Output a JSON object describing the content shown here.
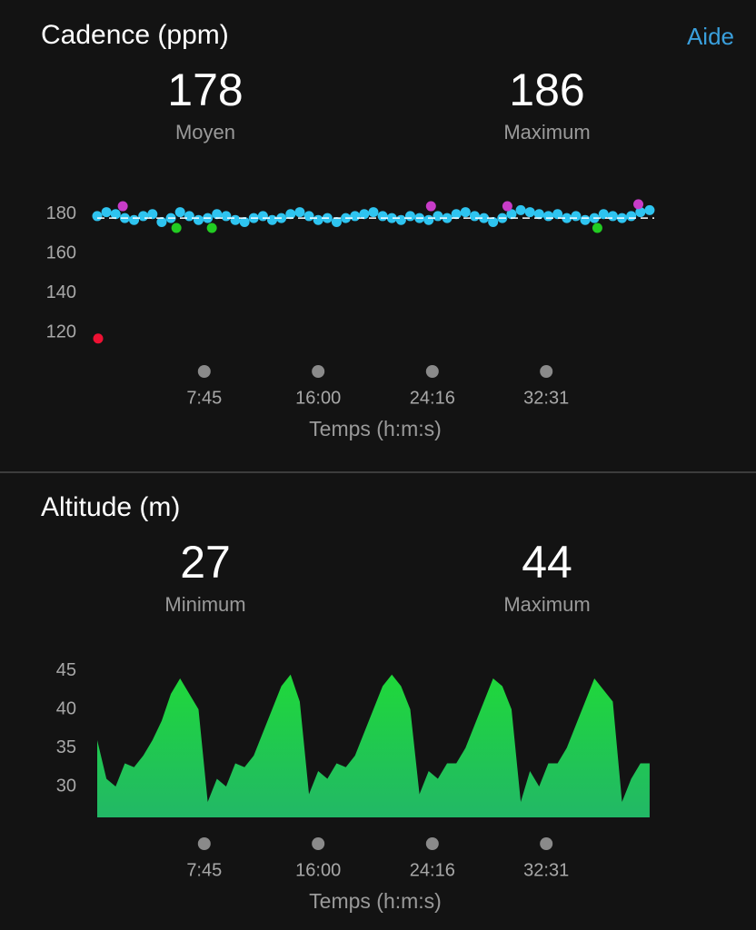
{
  "help": "Aide",
  "chart_data": [
    {
      "type": "scatter",
      "title": "Cadence (ppm)",
      "stats": [
        {
          "value": 178,
          "label": "Moyen"
        },
        {
          "value": 186,
          "label": "Maximum"
        }
      ],
      "xlabel": "Temps (h:m:s)",
      "xlim": [
        0,
        2420
      ],
      "xticks": [
        {
          "value": 465,
          "label": "7:45"
        },
        {
          "value": 960,
          "label": "16:00"
        },
        {
          "value": 1456,
          "label": "24:16"
        },
        {
          "value": 1951,
          "label": "32:31"
        }
      ],
      "ylim": [
        110,
        190
      ],
      "yticks": [
        120,
        140,
        160,
        180
      ],
      "series": [
        {
          "color": "#2ec4f0",
          "x": [
            0,
            40,
            80,
            120,
            160,
            200,
            240,
            280,
            320,
            360,
            400,
            440,
            480,
            520,
            560,
            600,
            640,
            680,
            720,
            760,
            800,
            840,
            880,
            920,
            960,
            1000,
            1040,
            1080,
            1120,
            1160,
            1200,
            1240,
            1280,
            1320,
            1360,
            1400,
            1440,
            1480,
            1520,
            1560,
            1600,
            1640,
            1680,
            1720,
            1760,
            1800,
            1840,
            1880,
            1920,
            1960,
            2000,
            2040,
            2080,
            2120,
            2160,
            2200,
            2240,
            2280,
            2320,
            2360,
            2400
          ],
          "values": [
            179,
            181,
            180,
            178,
            177,
            179,
            180,
            176,
            178,
            181,
            179,
            177,
            178,
            180,
            179,
            177,
            176,
            178,
            179,
            177,
            178,
            180,
            181,
            179,
            177,
            178,
            176,
            178,
            179,
            180,
            181,
            179,
            178,
            177,
            179,
            178,
            177,
            179,
            178,
            180,
            181,
            179,
            178,
            176,
            178,
            180,
            182,
            181,
            180,
            179,
            180,
            178,
            179,
            177,
            178,
            180,
            179,
            178,
            179,
            181,
            182
          ]
        },
        {
          "color": "#c83cc8",
          "x": [
            111,
            1450,
            1782,
            2351
          ],
          "values": [
            184,
            184,
            184,
            185
          ]
        },
        {
          "color": "#22cc22",
          "x": [
            344,
            498,
            2173
          ],
          "values": [
            173,
            173,
            173
          ]
        },
        {
          "color": "#ee1133",
          "x": [
            4
          ],
          "values": [
            117
          ]
        }
      ]
    },
    {
      "type": "area",
      "title": "Altitude (m)",
      "stats": [
        {
          "value": 27,
          "label": "Minimum"
        },
        {
          "value": 44,
          "label": "Maximum"
        }
      ],
      "xlabel": "Temps (h:m:s)",
      "xlim": [
        0,
        2420
      ],
      "xticks": [
        {
          "value": 465,
          "label": "7:45"
        },
        {
          "value": 960,
          "label": "16:00"
        },
        {
          "value": 1456,
          "label": "24:16"
        },
        {
          "value": 1951,
          "label": "32:31"
        }
      ],
      "ylim": [
        26,
        46
      ],
      "yticks": [
        30,
        35,
        40,
        45
      ],
      "color": "#1fd83a",
      "x": [
        0,
        40,
        80,
        120,
        160,
        200,
        240,
        280,
        320,
        360,
        400,
        440,
        480,
        520,
        560,
        600,
        640,
        680,
        720,
        760,
        800,
        840,
        880,
        920,
        960,
        1000,
        1040,
        1080,
        1120,
        1160,
        1200,
        1240,
        1280,
        1320,
        1360,
        1400,
        1440,
        1480,
        1520,
        1560,
        1600,
        1640,
        1680,
        1720,
        1760,
        1800,
        1840,
        1880,
        1920,
        1960,
        2000,
        2040,
        2080,
        2120,
        2160,
        2200,
        2240,
        2280,
        2320,
        2360,
        2400
      ],
      "values": [
        36,
        31,
        30,
        33,
        32.5,
        34,
        36,
        38.5,
        42,
        44,
        42,
        40,
        28,
        31,
        30,
        33,
        32.5,
        34,
        37,
        40,
        43,
        44.5,
        41,
        29,
        32,
        31,
        33,
        32.5,
        34,
        37,
        40,
        43,
        44.5,
        43,
        40,
        29,
        32,
        31,
        33,
        33,
        35,
        38,
        41,
        44,
        43,
        40,
        28,
        32,
        30,
        33,
        33,
        35,
        38,
        41,
        44,
        42.5,
        41,
        28,
        31,
        33,
        33
      ]
    }
  ]
}
